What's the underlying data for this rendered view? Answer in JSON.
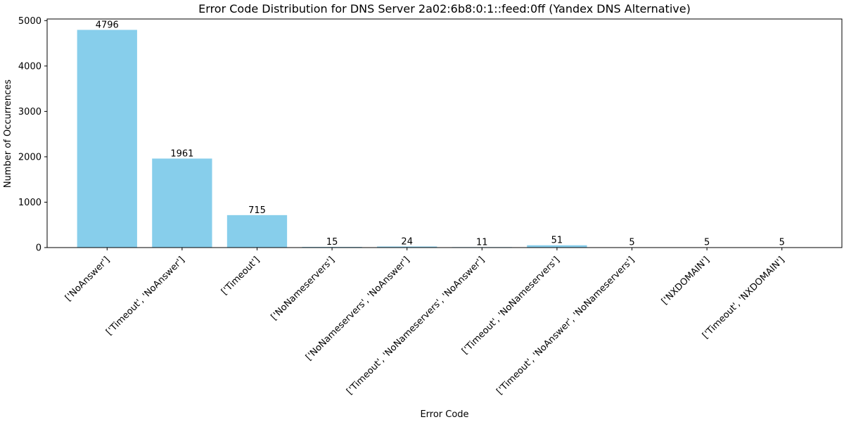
{
  "chart_data": {
    "type": "bar",
    "title": "Error Code Distribution for DNS Server 2a02:6b8:0:1::feed:0ff (Yandex DNS Alternative)",
    "xlabel": "Error Code",
    "ylabel": "Number of Occurrences",
    "ylim": [
      0,
      5035.8
    ],
    "yticks": [
      0,
      1000,
      2000,
      3000,
      4000,
      5000
    ],
    "grid": false,
    "bar_color": "#87ceeb",
    "categories": [
      "['NoAnswer']",
      "['Timeout', 'NoAnswer']",
      "['Timeout']",
      "['NoNameservers']",
      "['NoNameservers', 'NoAnswer']",
      "['Timeout', 'NoNameservers', 'NoAnswer']",
      "['Timeout', 'NoNameservers']",
      "['Timeout', 'NoAnswer', 'NoNameservers']",
      "['NXDOMAIN']",
      "['Timeout', 'NXDOMAIN']"
    ],
    "values": [
      4796,
      1961,
      715,
      15,
      24,
      11,
      51,
      5,
      5,
      5
    ]
  }
}
